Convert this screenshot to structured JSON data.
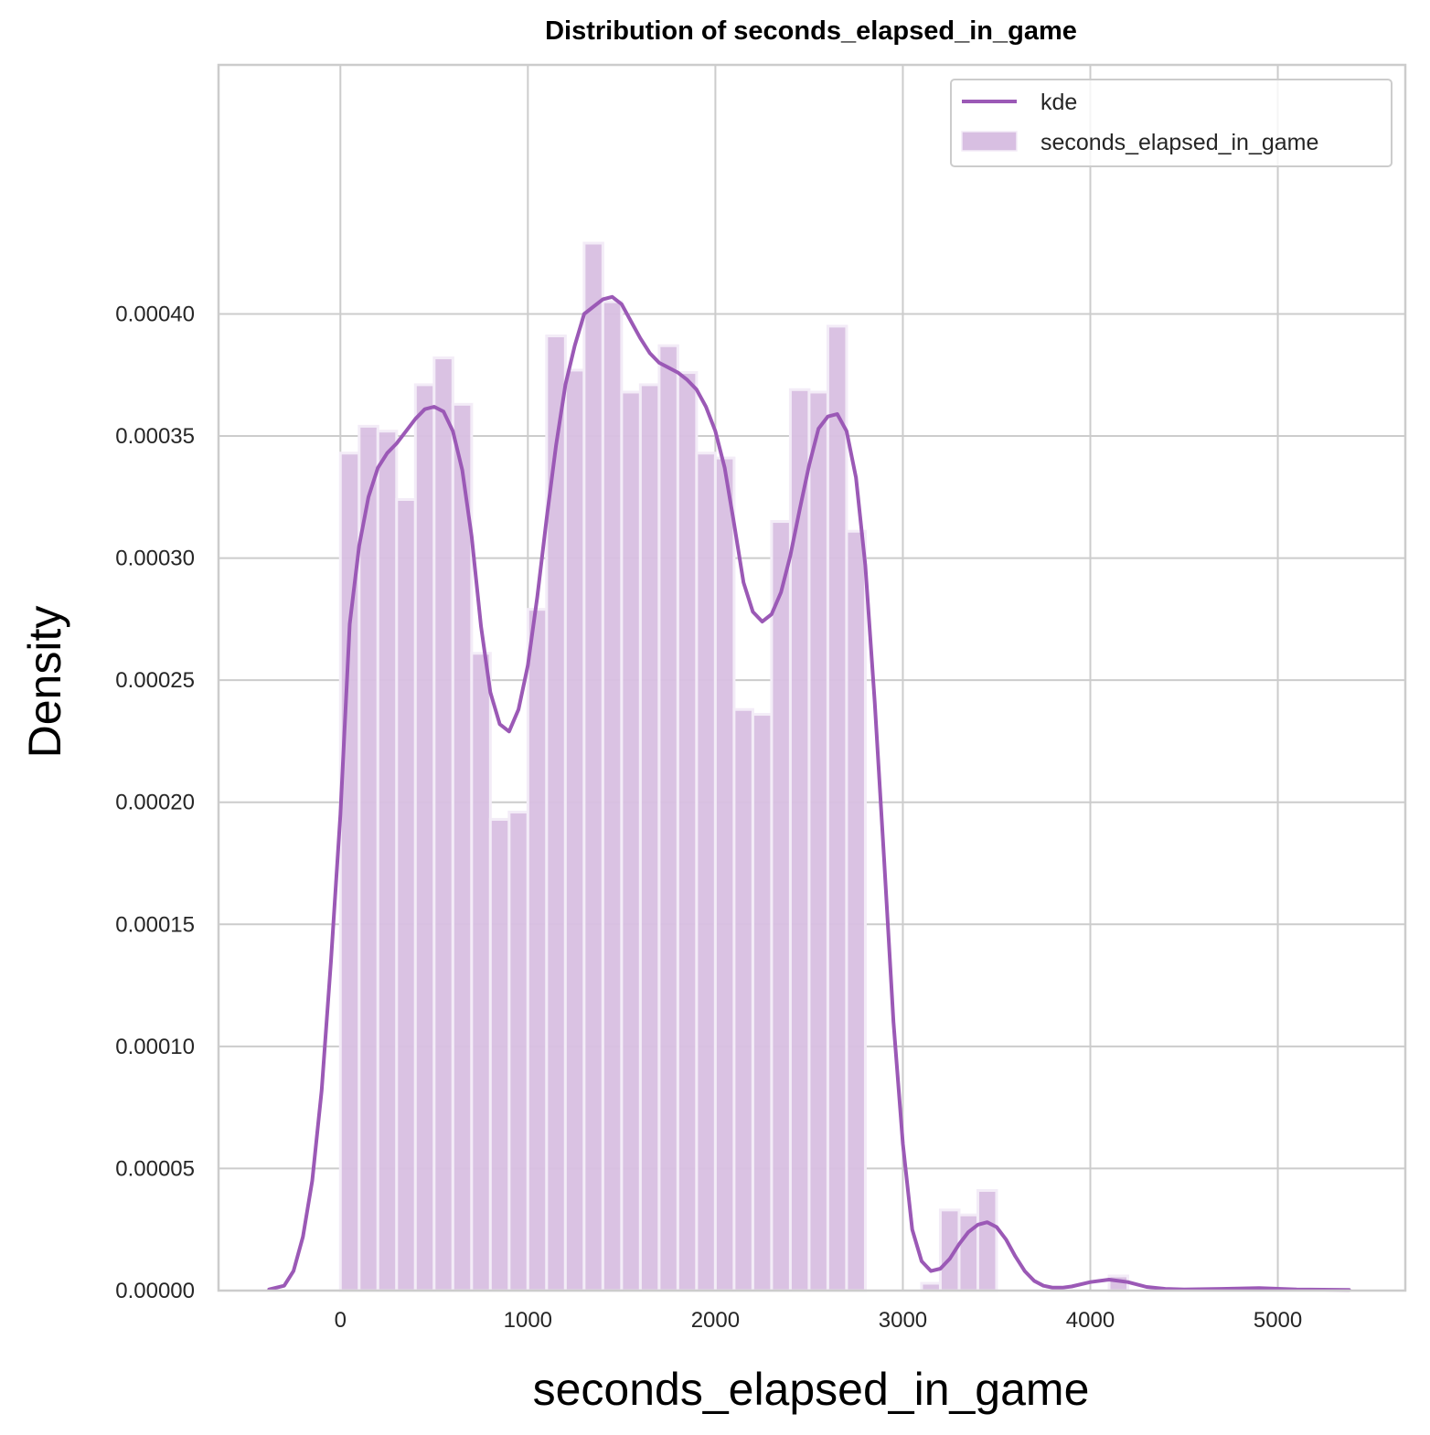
{
  "chart_data": {
    "type": "bar",
    "title": "Distribution of seconds_elapsed_in_game",
    "xlabel": "seconds_elapsed_in_game",
    "ylabel": "Density",
    "xlim": [
      -650,
      5680
    ],
    "ylim": [
      0,
      0.000502
    ],
    "grid": true,
    "legend_position": "top-right",
    "x_ticks": [
      0,
      1000,
      2000,
      3000,
      4000,
      5000
    ],
    "x_tick_labels": [
      "0",
      "1000",
      "2000",
      "3000",
      "4000",
      "5000"
    ],
    "y_ticks": [
      0,
      5e-05,
      0.0001,
      0.00015,
      0.0002,
      0.00025,
      0.0003,
      0.00035,
      0.0004
    ],
    "y_tick_labels": [
      "0.00000",
      "0.00005",
      "0.00010",
      "0.00015",
      "0.00020",
      "0.00025",
      "0.00030",
      "0.00035",
      "0.00040"
    ],
    "colors": {
      "bar_fill": "#d8bfe2",
      "bar_edge": "#f3ecf7",
      "kde_line": "#9b59b6",
      "grid": "#cccccc",
      "frame": "#cccccc"
    },
    "histogram": {
      "name": "seconds_elapsed_in_game",
      "bin_width": 100,
      "bin_starts": [
        0,
        100,
        200,
        300,
        400,
        500,
        600,
        700,
        800,
        900,
        1000,
        1100,
        1200,
        1300,
        1400,
        1500,
        1600,
        1700,
        1800,
        1900,
        2000,
        2100,
        2200,
        2300,
        2400,
        2500,
        2600,
        2700,
        2800,
        2900,
        3000,
        3100,
        3200,
        3300,
        3400,
        3500,
        3600,
        3700,
        3800,
        3900,
        4000,
        4100,
        4200,
        4300
      ],
      "densities": [
        0.000343,
        0.000354,
        0.000352,
        0.000324,
        0.000371,
        0.000382,
        0.000363,
        0.000261,
        0.000193,
        0.000196,
        0.000279,
        0.000391,
        0.000377,
        0.000429,
        0.000405,
        0.000368,
        0.000371,
        0.000387,
        0.000376,
        0.000343,
        0.000341,
        0.000238,
        0.000236,
        0.000315,
        0.000369,
        0.000368,
        0.000395,
        0.000311,
        0,
        0,
        0,
        3e-06,
        3.3e-05,
        3.1e-05,
        4.1e-05,
        0,
        0,
        0,
        0,
        0,
        0,
        6e-06,
        0,
        0
      ]
    },
    "kde": {
      "name": "kde",
      "x": [
        -380,
        -300,
        -250,
        -200,
        -150,
        -100,
        -50,
        0,
        50,
        100,
        150,
        200,
        250,
        300,
        350,
        400,
        450,
        500,
        550,
        600,
        650,
        700,
        750,
        800,
        850,
        900,
        950,
        1000,
        1050,
        1100,
        1150,
        1200,
        1250,
        1300,
        1350,
        1400,
        1450,
        1500,
        1550,
        1600,
        1650,
        1700,
        1750,
        1800,
        1850,
        1900,
        1950,
        2000,
        2050,
        2100,
        2150,
        2200,
        2250,
        2300,
        2350,
        2400,
        2450,
        2500,
        2550,
        2600,
        2650,
        2700,
        2750,
        2800,
        2850,
        2900,
        2950,
        3000,
        3050,
        3100,
        3150,
        3200,
        3250,
        3300,
        3350,
        3400,
        3450,
        3500,
        3550,
        3600,
        3650,
        3700,
        3750,
        3800,
        3850,
        3900,
        4000,
        4100,
        4200,
        4300,
        4400,
        4500,
        4700,
        4900,
        5100,
        5380
      ],
      "y": [
        5e-07,
        2e-06,
        8e-06,
        2.2e-05,
        4.5e-05,
        8.2e-05,
        0.000135,
        0.000195,
        0.000273,
        0.000305,
        0.000325,
        0.000337,
        0.000343,
        0.000347,
        0.000352,
        0.000357,
        0.000361,
        0.000362,
        0.00036,
        0.000352,
        0.000336,
        0.000309,
        0.000272,
        0.000245,
        0.000232,
        0.000229,
        0.000238,
        0.000256,
        0.000284,
        0.000316,
        0.000346,
        0.000371,
        0.000387,
        0.0004,
        0.000403,
        0.000406,
        0.000407,
        0.000404,
        0.000397,
        0.00039,
        0.000384,
        0.00038,
        0.000378,
        0.000376,
        0.000373,
        0.000369,
        0.000362,
        0.000352,
        0.000337,
        0.000314,
        0.00029,
        0.000278,
        0.000274,
        0.000277,
        0.000286,
        0.000301,
        0.00032,
        0.000338,
        0.000353,
        0.000358,
        0.000359,
        0.000352,
        0.000333,
        0.000297,
        0.000241,
        0.000177,
        0.00011,
        6e-05,
        2.5e-05,
        1.2e-05,
        8e-06,
        9e-06,
        1.3e-05,
        1.9e-05,
        2.4e-05,
        2.7e-05,
        2.8e-05,
        2.6e-05,
        2.1e-05,
        1.4e-05,
        8e-06,
        4e-06,
        2e-06,
        1.2e-06,
        1.2e-06,
        1.7e-06,
        3.5e-06,
        4.5e-06,
        3.5e-06,
        1.5e-06,
        7e-07,
        5e-07,
        7e-07,
        1e-06,
        5e-07,
        3e-07
      ]
    }
  }
}
